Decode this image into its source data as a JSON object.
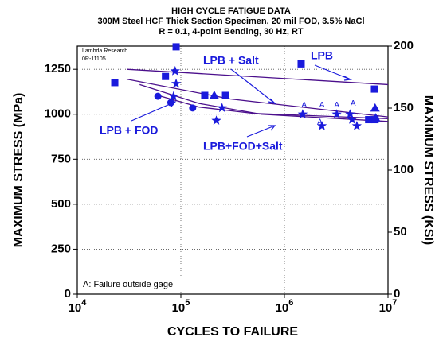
{
  "chart_data": {
    "type": "scatter",
    "title": "HIGH CYCLE FATIGUE DATA",
    "subtitle": [
      "300M Steel HCF Thick Section Specimen, 20 mil FOD, 3.5% NaCl",
      "R = 0.1, 4-point Bending, 30 Hz, RT"
    ],
    "x_label": "CYCLES TO FAILURE",
    "y_label": "MAXIMUM STRESS (MPa)",
    "y2_label": "MAXIMUM STRESS (KSI)",
    "x_scale": "log",
    "grid": true,
    "xlim": [
      10000,
      10000000
    ],
    "xticks": [
      {
        "value": 10000,
        "label": "10",
        "exponent": "4"
      },
      {
        "value": 100000,
        "label": "10",
        "exponent": "5"
      },
      {
        "value": 1000000,
        "label": "10",
        "exponent": "6"
      },
      {
        "value": 10000000,
        "label": "10",
        "exponent": "7"
      }
    ],
    "ylim": [
      0,
      1379
    ],
    "yticks": [
      0,
      250,
      500,
      750,
      1000,
      1250
    ],
    "y2lim": [
      0,
      200
    ],
    "y2ticks": [
      0,
      50,
      100,
      150,
      200
    ],
    "series": [
      {
        "name": "LPB",
        "marker": "square",
        "color": "#1a1adc",
        "x": [
          23000,
          71000,
          90000,
          170000,
          270000,
          1450000,
          7400000,
          6500000,
          7500000
        ],
        "values": [
          1176,
          1210,
          1375,
          1105,
          1105,
          1280,
          1140,
          970,
          970
        ]
      },
      {
        "name": "LPB + Salt",
        "marker": "triangle",
        "color": "#1a1adc",
        "x": [
          210000,
          7500000,
          7600000
        ],
        "values": [
          1105,
          1035,
          980
        ]
      },
      {
        "name": "LPB + FOD",
        "marker": "circle",
        "color": "#1a1adc",
        "x": [
          60000,
          80000,
          130000
        ],
        "values": [
          1100,
          1065,
          1035
        ]
      },
      {
        "name": "LPB+FOD+Salt",
        "marker": "star",
        "color": "#1a1adc",
        "x": [
          88000,
          90000,
          85000,
          220000,
          250000,
          1500000,
          2300000,
          3200000,
          4500000,
          5000000,
          4300000
        ],
        "values": [
          1240,
          1170,
          1100,
          965,
          1035,
          1000,
          935,
          1000,
          970,
          935,
          1000
        ]
      }
    ],
    "fits": [
      {
        "series": 0,
        "x": [
          30000,
          10000000
        ],
        "values": [
          1250,
          1165
        ]
      },
      {
        "series": 1,
        "x": [
          30000,
          300000,
          10000000
        ],
        "values": [
          1195,
          1085,
          985
        ]
      },
      {
        "series": 2,
        "x": [
          60000,
          150000,
          500000,
          10000000
        ],
        "values": [
          1105,
          1040,
          1005,
          975
        ]
      },
      {
        "series": 3,
        "x": [
          40000,
          150000,
          600000,
          10000000
        ],
        "values": [
          1165,
          1060,
          1000,
          960
        ]
      }
    ],
    "point_notes": [
      {
        "text": "A",
        "x": 1550000,
        "y": 1050
      },
      {
        "text": "A",
        "x": 2300000,
        "y": 1050
      },
      {
        "text": "A",
        "x": 3200000,
        "y": 1050
      },
      {
        "text": "A",
        "x": 4600000,
        "y": 1060
      },
      {
        "text": "A",
        "x": 2200000,
        "y": 955
      }
    ],
    "source": [
      "Lambda Research",
      "0R-11105"
    ],
    "note": "A: Failure outside gage"
  }
}
